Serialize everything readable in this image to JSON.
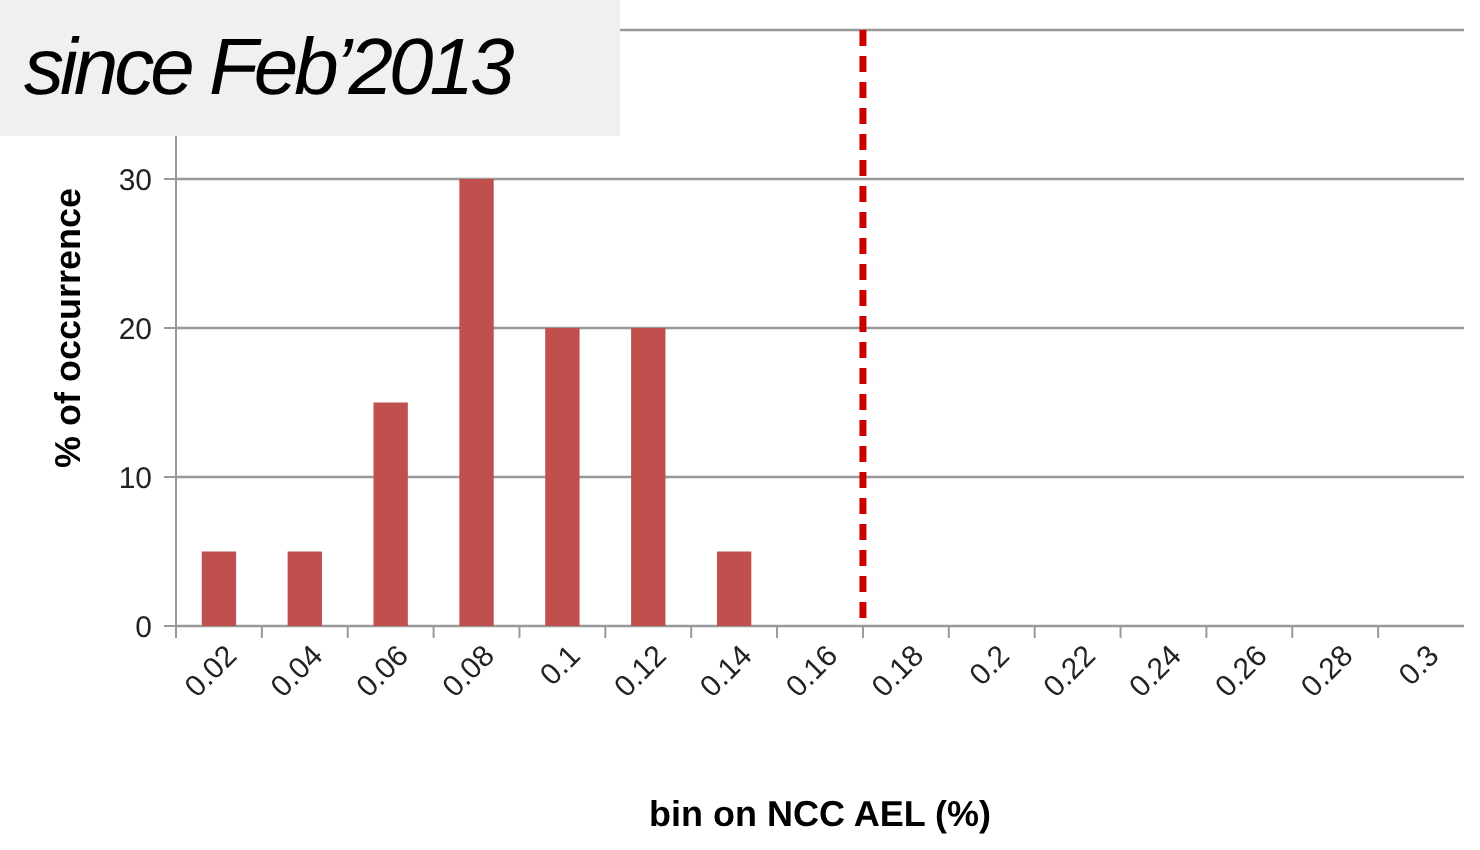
{
  "chart_data": {
    "type": "bar",
    "title": "since Feb’2013",
    "xlabel": "bin on NCC AEL (%)",
    "ylabel": "% of occurrence",
    "x": [
      0.02,
      0.04,
      0.06,
      0.08,
      0.1,
      0.12,
      0.14,
      0.16,
      0.18,
      0.2,
      0.22,
      0.24,
      0.26,
      0.28,
      0.3
    ],
    "values": [
      5,
      5,
      15,
      30,
      20,
      20,
      5,
      0,
      0,
      0,
      0,
      0,
      0,
      0,
      0
    ],
    "color": "#c0504d",
    "xlim": [
      0.01,
      0.31
    ],
    "xticks": [
      0.02,
      0.04,
      0.06,
      0.08,
      0.1,
      0.12,
      0.14,
      0.16,
      0.18,
      0.2,
      0.22,
      0.24,
      0.26,
      0.28,
      0.3
    ],
    "ylim": [
      0,
      40
    ],
    "yticks": [
      0,
      10,
      20,
      30,
      {
        "value": 40,
        "label": null
      }
    ],
    "grid": "y",
    "ref_lines": [
      {
        "axis": "x",
        "value": 0.17,
        "color": "#cc0000",
        "line_style": "dashed"
      }
    ]
  }
}
